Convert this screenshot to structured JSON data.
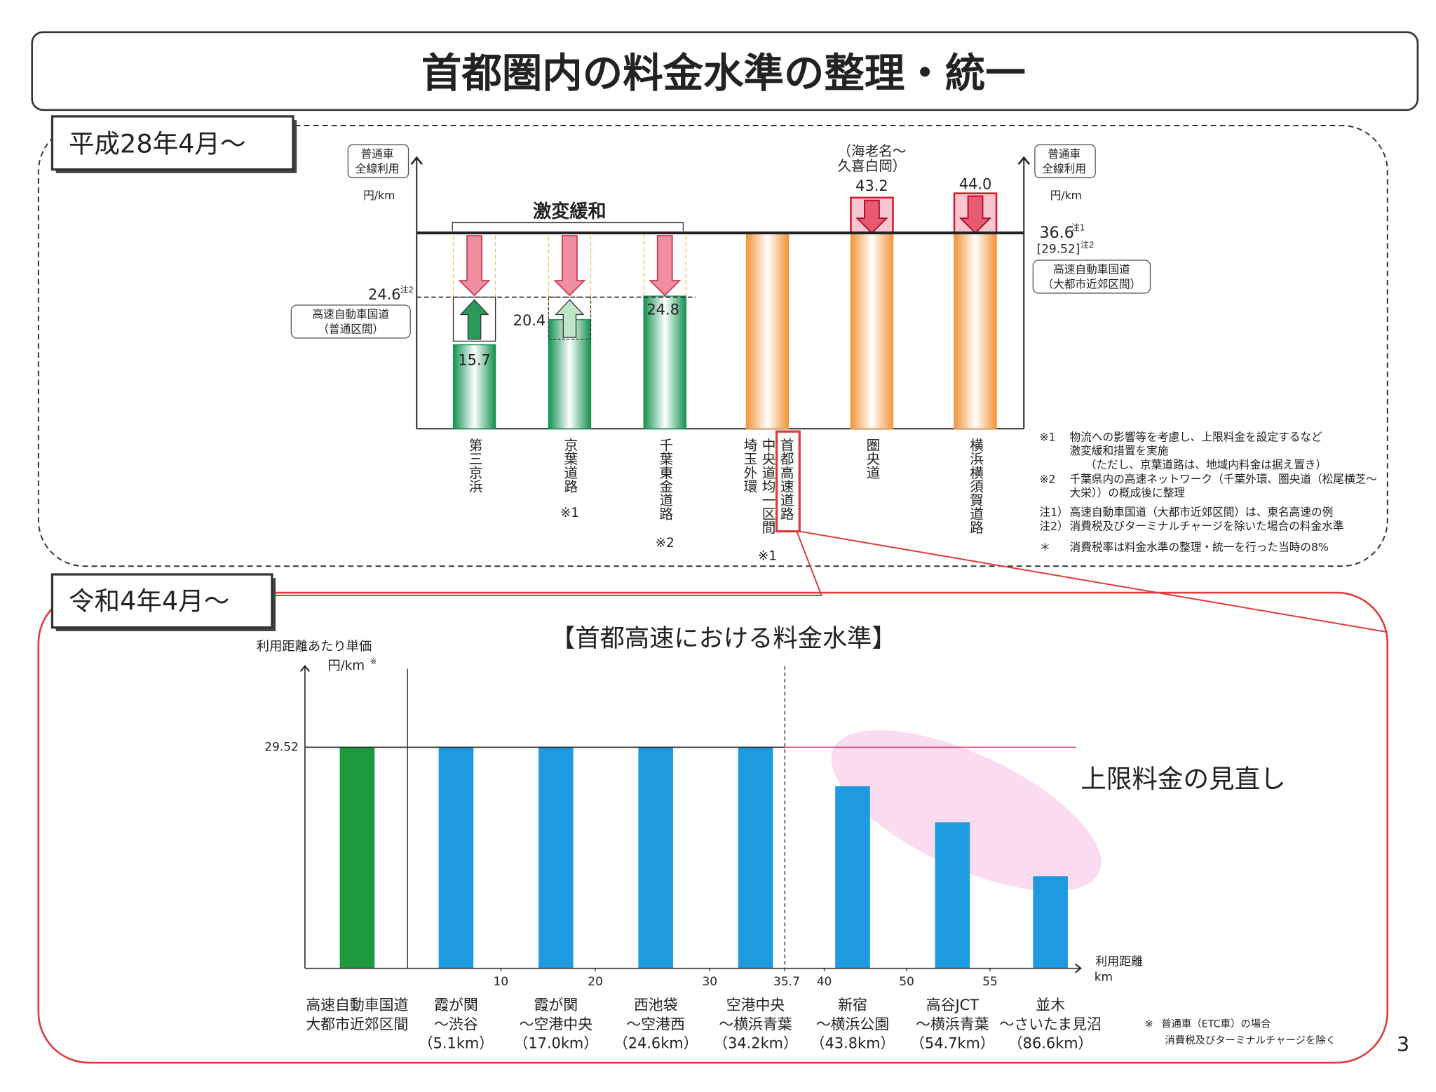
{
  "header": {
    "title": "首都圏内の料金水準の整理・統一"
  },
  "sections": [
    {
      "label": "平成28年4月～"
    },
    {
      "label": "令和4年4月～"
    }
  ],
  "chart_data": [
    {
      "type": "bar",
      "y_label": [
        "普通車",
        "全線利用"
      ],
      "y_unit": "円/km",
      "categories": [
        [
          "第三京浜"
        ],
        [
          "京葉道路"
        ],
        [
          "千葉東金道路"
        ],
        [
          "首都高速道路",
          "中央道均一区間",
          "埼玉外環"
        ],
        [
          "圏央道"
        ],
        [
          "横浜横須賀道路"
        ]
      ],
      "category_notes": [
        null,
        "※1",
        "※2",
        "※1",
        null,
        null
      ],
      "values": [
        15.7,
        20.4,
        24.8,
        36.6,
        43.2,
        44.0
      ],
      "value_labels": [
        "15.7",
        "20.4",
        "24.8",
        null,
        "43.2",
        "44.0"
      ],
      "colors": [
        "#139150",
        "#139150",
        "#139150",
        "#f3953a",
        "#f3953a",
        "#f3953a"
      ],
      "ylim": [
        0,
        50
      ],
      "reference_lines": [
        {
          "value": 36.6,
          "label": "36.6",
          "note": "注1",
          "sub_label": "[29.52]",
          "sub_note": "注2",
          "desc": [
            "高速自動車国道",
            "（大都市近郊区間）"
          ]
        },
        {
          "value": 24.6,
          "label": "24.6",
          "note": "注2",
          "desc": [
            "高速自動車国道",
            "（普通区間）"
          ]
        }
      ],
      "annotations": [
        {
          "text": [
            "激変緩和"
          ]
        },
        {
          "text": [
            "（海老名～",
            "久喜白岡）"
          ]
        }
      ],
      "notes": [
        [
          "※1",
          "物流への影響等を考慮し、上限料金を設定するなど",
          "激変緩和措置を実施",
          "（ただし、京葉道路は、地域内料金は据え置き）"
        ],
        [
          "※2",
          "千葉県内の高速ネットワーク（千葉外環、圏央道（松尾横芝～",
          "大栄））の概成後に整理"
        ],
        [
          "注1）",
          "高速自動車国道（大都市近郊区間）は、東名高速の例"
        ],
        [
          "注2）",
          "消費税及びターミナルチャージを除いた場合の料金水準"
        ],
        [
          "＊",
          "消費税率は料金水準の整理・統一を行った当時の8%"
        ]
      ]
    },
    {
      "type": "bar",
      "title": "【首都高速における料金水準】",
      "y_label": "利用距離あたり単価",
      "y_unit": "円/km",
      "y_unit_note": "※",
      "x_label": [
        "利用距離",
        "km"
      ],
      "categories": [
        [
          "高速自動車国道",
          "大都市近郊区間"
        ],
        [
          "霞が関",
          "～渋谷",
          "（5.1km）"
        ],
        [
          "霞が関",
          "～空港中央",
          "（17.0km）"
        ],
        [
          "西池袋",
          "～空港西",
          "（24.6km）"
        ],
        [
          "空港中央",
          "～横浜青葉",
          "（34.2km）"
        ],
        [
          "新宿",
          "～横浜公園",
          "（43.8km）"
        ],
        [
          "高谷JCT",
          "～横浜青葉",
          "（54.7km）"
        ],
        [
          "並木",
          "～さいたま見沼",
          "（86.6km）"
        ]
      ],
      "values": [
        29.52,
        29.52,
        29.52,
        29.52,
        29.52,
        24.3,
        19.5,
        12.3
      ],
      "colors": [
        "#1e9a3c",
        "#1e9be0",
        "#1e9be0",
        "#1e9be0",
        "#1e9be0",
        "#1e9be0",
        "#1e9be0",
        "#1e9be0"
      ],
      "ylim": [
        0,
        40
      ],
      "yticks": [
        29.52
      ],
      "xticks": [
        10,
        20,
        30,
        35.7,
        40,
        50,
        55
      ],
      "annotation": "上限料金の見直し",
      "footnote": [
        "※",
        "普通車（ETC車）の場合",
        "消費税及びターミナルチャージを除く"
      ]
    }
  ],
  "page_number": "3"
}
